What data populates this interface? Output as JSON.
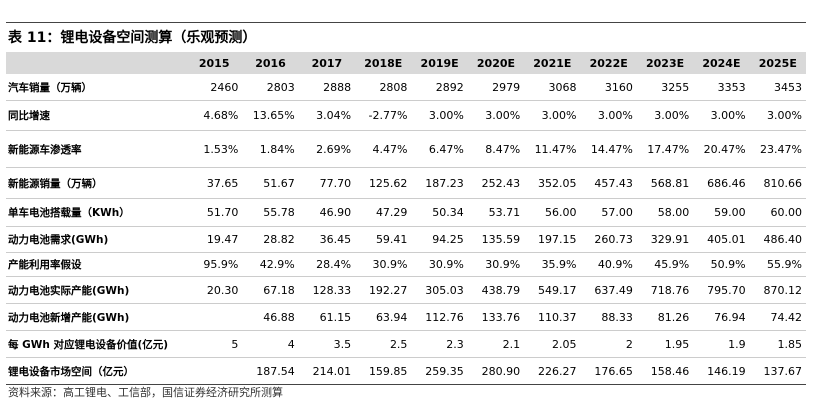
{
  "header": {
    "title": "表 11：锂电设备空间测算（乐观预测）"
  },
  "table": {
    "columns": [
      "2015",
      "2016",
      "2017",
      "2018E",
      "2019E",
      "2020E",
      "2021E",
      "2022E",
      "2023E",
      "2024E",
      "2025E"
    ],
    "rows": [
      {
        "label": "汽车销量（万辆）",
        "cells": [
          "2460",
          "2803",
          "2888",
          "2808",
          "2892",
          "2979",
          "3068",
          "3160",
          "3255",
          "3353",
          "3453"
        ]
      },
      {
        "label": "同比增速",
        "cells": [
          "4.68%",
          "13.65%",
          "3.04%",
          "-2.77%",
          "3.00%",
          "3.00%",
          "3.00%",
          "3.00%",
          "3.00%",
          "3.00%",
          "3.00%"
        ]
      },
      {
        "label": "新能源车渗透率",
        "cells": [
          "1.53%",
          "1.84%",
          "2.69%",
          "4.47%",
          "6.47%",
          "8.47%",
          "11.47%",
          "14.47%",
          "17.47%",
          "20.47%",
          "23.47%"
        ]
      },
      {
        "label": "新能源销量（万辆）",
        "cells": [
          "37.65",
          "51.67",
          "77.70",
          "125.62",
          "187.23",
          "252.43",
          "352.05",
          "457.43",
          "568.81",
          "686.46",
          "810.66"
        ]
      },
      {
        "label": "单车电池搭载量（KWh）",
        "cells": [
          "51.70",
          "55.78",
          "46.90",
          "47.29",
          "50.34",
          "53.71",
          "56.00",
          "57.00",
          "58.00",
          "59.00",
          "60.00"
        ]
      },
      {
        "label": "动力电池需求(GWh)",
        "cells": [
          "19.47",
          "28.82",
          "36.45",
          "59.41",
          "94.25",
          "135.59",
          "197.15",
          "260.73",
          "329.91",
          "405.01",
          "486.40"
        ]
      },
      {
        "label": "产能利用率假设",
        "cells": [
          "95.9%",
          "42.9%",
          "28.4%",
          "30.9%",
          "30.9%",
          "30.9%",
          "35.9%",
          "40.9%",
          "45.9%",
          "50.9%",
          "55.9%"
        ]
      },
      {
        "label": "动力电池实际产能(GWh)",
        "cells": [
          "20.30",
          "67.18",
          "128.33",
          "192.27",
          "305.03",
          "438.79",
          "549.17",
          "637.49",
          "718.76",
          "795.70",
          "870.12"
        ]
      },
      {
        "label": "动力电池新增产能(GWh)",
        "cells": [
          null,
          "46.88",
          "61.15",
          "63.94",
          "112.76",
          "133.76",
          "110.37",
          "88.33",
          "81.26",
          "76.94",
          "74.42"
        ]
      },
      {
        "label": "每 GWh 对应锂电设备价值(亿元)",
        "cells": [
          "5",
          "4",
          "3.5",
          "2.5",
          "2.3",
          "2.1",
          "2.05",
          "2",
          "1.95",
          "1.9",
          "1.85"
        ]
      },
      {
        "label": "锂电设备市场空间（亿元）",
        "cells": [
          null,
          "187.54",
          "214.01",
          "159.85",
          "259.35",
          "280.90",
          "226.27",
          "176.65",
          "158.46",
          "146.19",
          "137.67"
        ]
      }
    ]
  },
  "footer": {
    "source": "资料来源：高工锂电、工信部，国信证券经济研究所测算"
  }
}
